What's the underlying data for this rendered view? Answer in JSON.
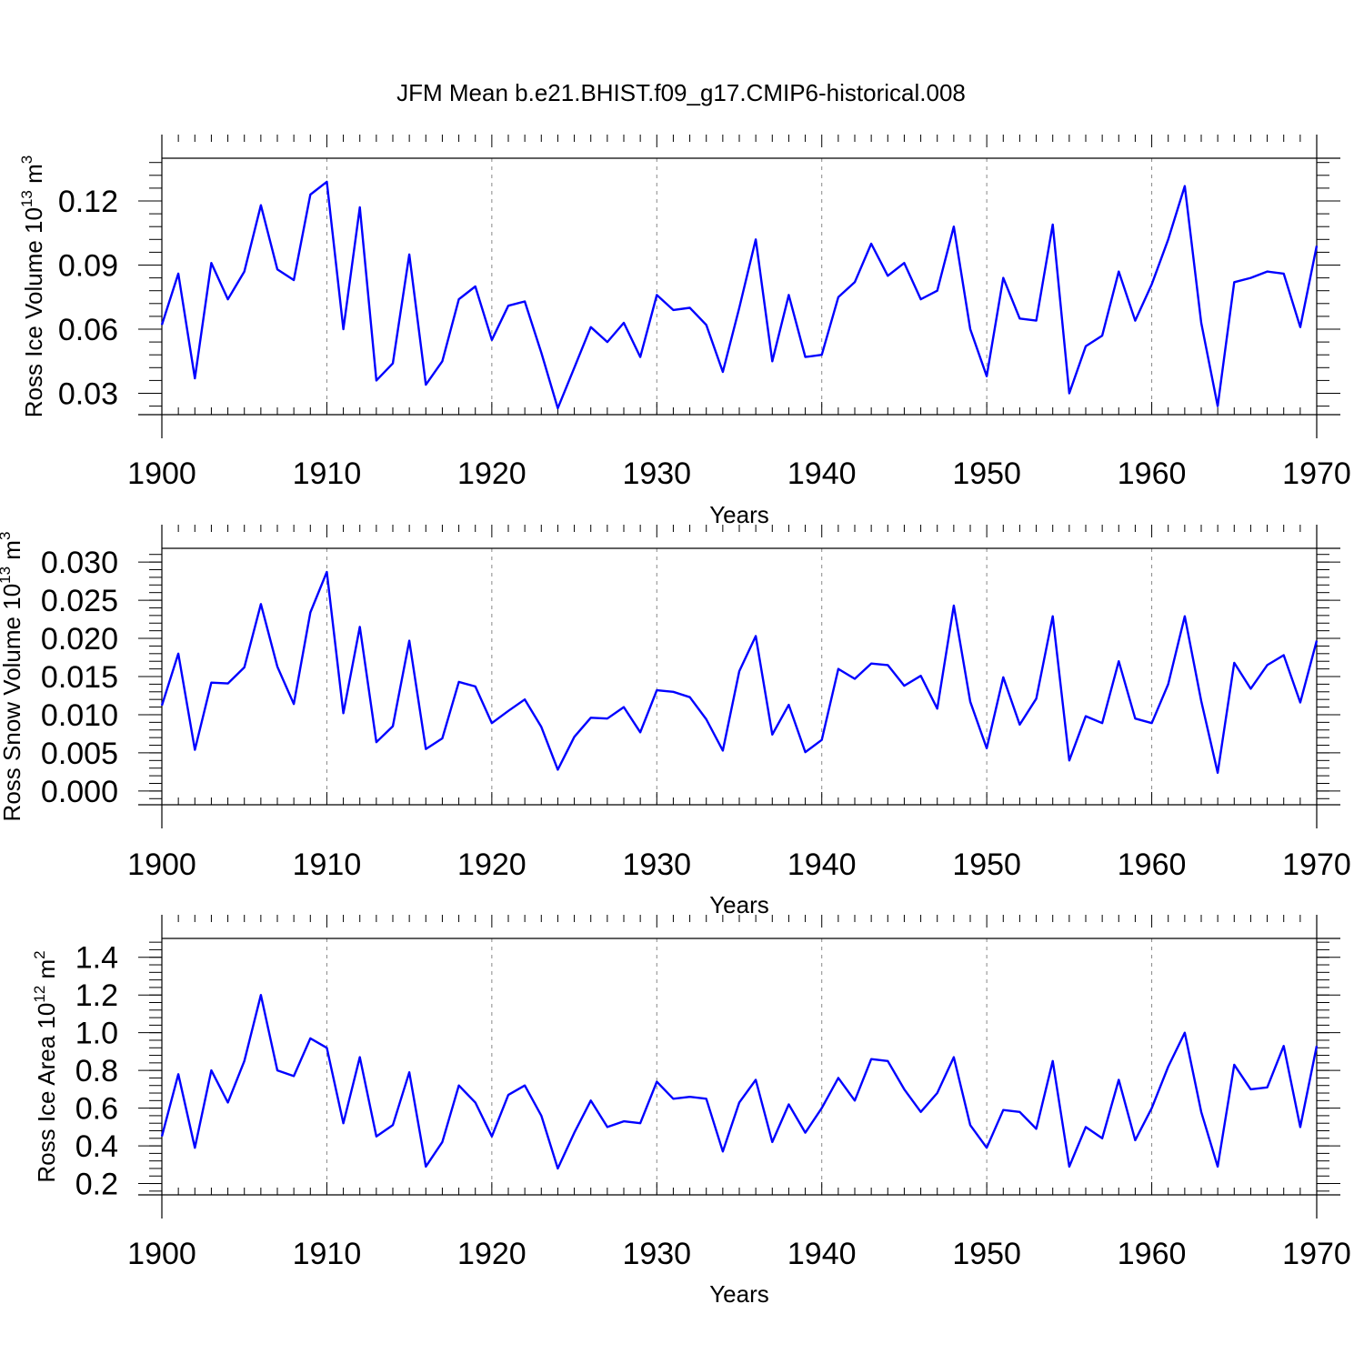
{
  "chart_data": [
    {
      "type": "line",
      "title": "JFM Mean b.e21.BHIST.f09_g17.CMIP6-historical.008",
      "xlabel": "Years",
      "ylabel": "Ross Ice Volume 10",
      "ylabel_exp": "13",
      "ylabel_unit": " m",
      "ylabel_unit_exp": "3",
      "xlim": [
        1900,
        1970
      ],
      "ylim": [
        0.02,
        0.14
      ],
      "yticks": [
        "0.03",
        "0.06",
        "0.09",
        "0.12"
      ],
      "ytick_values": [
        0.03,
        0.06,
        0.09,
        0.12
      ],
      "xticks": [
        "1900",
        "1910",
        "1920",
        "1930",
        "1940",
        "1950",
        "1960",
        "1970"
      ],
      "grid_x": [
        1910,
        1920,
        1930,
        1940,
        1950,
        1960
      ],
      "series": [
        {
          "name": "Ross Ice Volume",
          "color": "#0000ff",
          "x_start": 1900,
          "values": [
            0.062,
            0.086,
            0.037,
            0.091,
            0.074,
            0.087,
            0.118,
            0.088,
            0.083,
            0.123,
            0.129,
            0.06,
            0.117,
            0.036,
            0.044,
            0.095,
            0.034,
            0.045,
            0.074,
            0.08,
            0.055,
            0.071,
            0.073,
            0.049,
            0.023,
            0.042,
            0.061,
            0.054,
            0.063,
            0.047,
            0.076,
            0.069,
            0.07,
            0.062,
            0.04,
            0.07,
            0.102,
            0.045,
            0.076,
            0.047,
            0.048,
            0.075,
            0.082,
            0.1,
            0.085,
            0.091,
            0.074,
            0.078,
            0.108,
            0.06,
            0.038,
            0.084,
            0.065,
            0.064,
            0.109,
            0.03,
            0.052,
            0.057,
            0.087,
            0.064,
            0.081,
            0.102,
            0.127,
            0.063,
            0.024,
            0.082,
            0.084,
            0.087,
            0.086,
            0.061,
            0.099
          ]
        }
      ]
    },
    {
      "type": "line",
      "xlabel": "Years",
      "ylabel": "Ross Snow Volume 10",
      "ylabel_exp": "13",
      "ylabel_unit": " m",
      "ylabel_unit_exp": "3",
      "xlim": [
        1900,
        1970
      ],
      "ylim": [
        -0.0018,
        0.0318
      ],
      "yticks": [
        "0.000",
        "0.005",
        "0.010",
        "0.015",
        "0.020",
        "0.025",
        "0.030"
      ],
      "ytick_values": [
        0.0,
        0.005,
        0.01,
        0.015,
        0.02,
        0.025,
        0.03
      ],
      "xticks": [
        "1900",
        "1910",
        "1920",
        "1930",
        "1940",
        "1950",
        "1960",
        "1970"
      ],
      "grid_x": [
        1910,
        1920,
        1930,
        1940,
        1950,
        1960
      ],
      "series": [
        {
          "name": "Ross Snow Volume",
          "color": "#0000ff",
          "x_start": 1900,
          "values": [
            0.0112,
            0.018,
            0.0054,
            0.0142,
            0.0141,
            0.0162,
            0.0245,
            0.0163,
            0.0114,
            0.0234,
            0.0287,
            0.0102,
            0.0215,
            0.0064,
            0.0085,
            0.0197,
            0.0055,
            0.0069,
            0.0143,
            0.0137,
            0.0089,
            0.0105,
            0.012,
            0.0084,
            0.0028,
            0.0071,
            0.0096,
            0.0095,
            0.011,
            0.0077,
            0.0132,
            0.013,
            0.0123,
            0.0094,
            0.0053,
            0.0157,
            0.0203,
            0.0074,
            0.0113,
            0.0051,
            0.0067,
            0.016,
            0.0147,
            0.0167,
            0.0165,
            0.0138,
            0.0151,
            0.0108,
            0.0243,
            0.0117,
            0.0056,
            0.0149,
            0.0087,
            0.0121,
            0.0229,
            0.004,
            0.0098,
            0.0089,
            0.017,
            0.0095,
            0.0089,
            0.014,
            0.0229,
            0.0118,
            0.0024,
            0.0168,
            0.0134,
            0.0165,
            0.0178,
            0.0116,
            0.0197
          ]
        }
      ]
    },
    {
      "type": "line",
      "xlabel": "Years",
      "ylabel": "Ross Ice Area 10",
      "ylabel_exp": "12",
      "ylabel_unit": " m",
      "ylabel_unit_exp": "2",
      "xlim": [
        1900,
        1970
      ],
      "ylim": [
        0.14,
        1.5
      ],
      "yticks": [
        "0.2",
        "0.4",
        "0.6",
        "0.8",
        "1.0",
        "1.2",
        "1.4"
      ],
      "ytick_values": [
        0.2,
        0.4,
        0.6,
        0.8,
        1.0,
        1.2,
        1.4
      ],
      "xticks": [
        "1900",
        "1910",
        "1920",
        "1930",
        "1940",
        "1950",
        "1960",
        "1970"
      ],
      "grid_x": [
        1910,
        1920,
        1930,
        1940,
        1950,
        1960
      ],
      "series": [
        {
          "name": "Ross Ice Area",
          "color": "#0000ff",
          "x_start": 1900,
          "values": [
            0.45,
            0.78,
            0.39,
            0.8,
            0.63,
            0.85,
            1.2,
            0.8,
            0.77,
            0.97,
            0.92,
            0.52,
            0.87,
            0.45,
            0.51,
            0.79,
            0.29,
            0.42,
            0.72,
            0.63,
            0.45,
            0.67,
            0.72,
            0.56,
            0.28,
            0.47,
            0.64,
            0.5,
            0.53,
            0.52,
            0.74,
            0.65,
            0.66,
            0.65,
            0.37,
            0.63,
            0.75,
            0.42,
            0.62,
            0.47,
            0.6,
            0.76,
            0.64,
            0.86,
            0.85,
            0.7,
            0.58,
            0.68,
            0.87,
            0.51,
            0.39,
            0.59,
            0.58,
            0.49,
            0.85,
            0.29,
            0.5,
            0.44,
            0.75,
            0.43,
            0.6,
            0.82,
            1.0,
            0.58,
            0.29,
            0.83,
            0.7,
            0.71,
            0.93,
            0.5,
            0.93
          ]
        }
      ]
    }
  ]
}
